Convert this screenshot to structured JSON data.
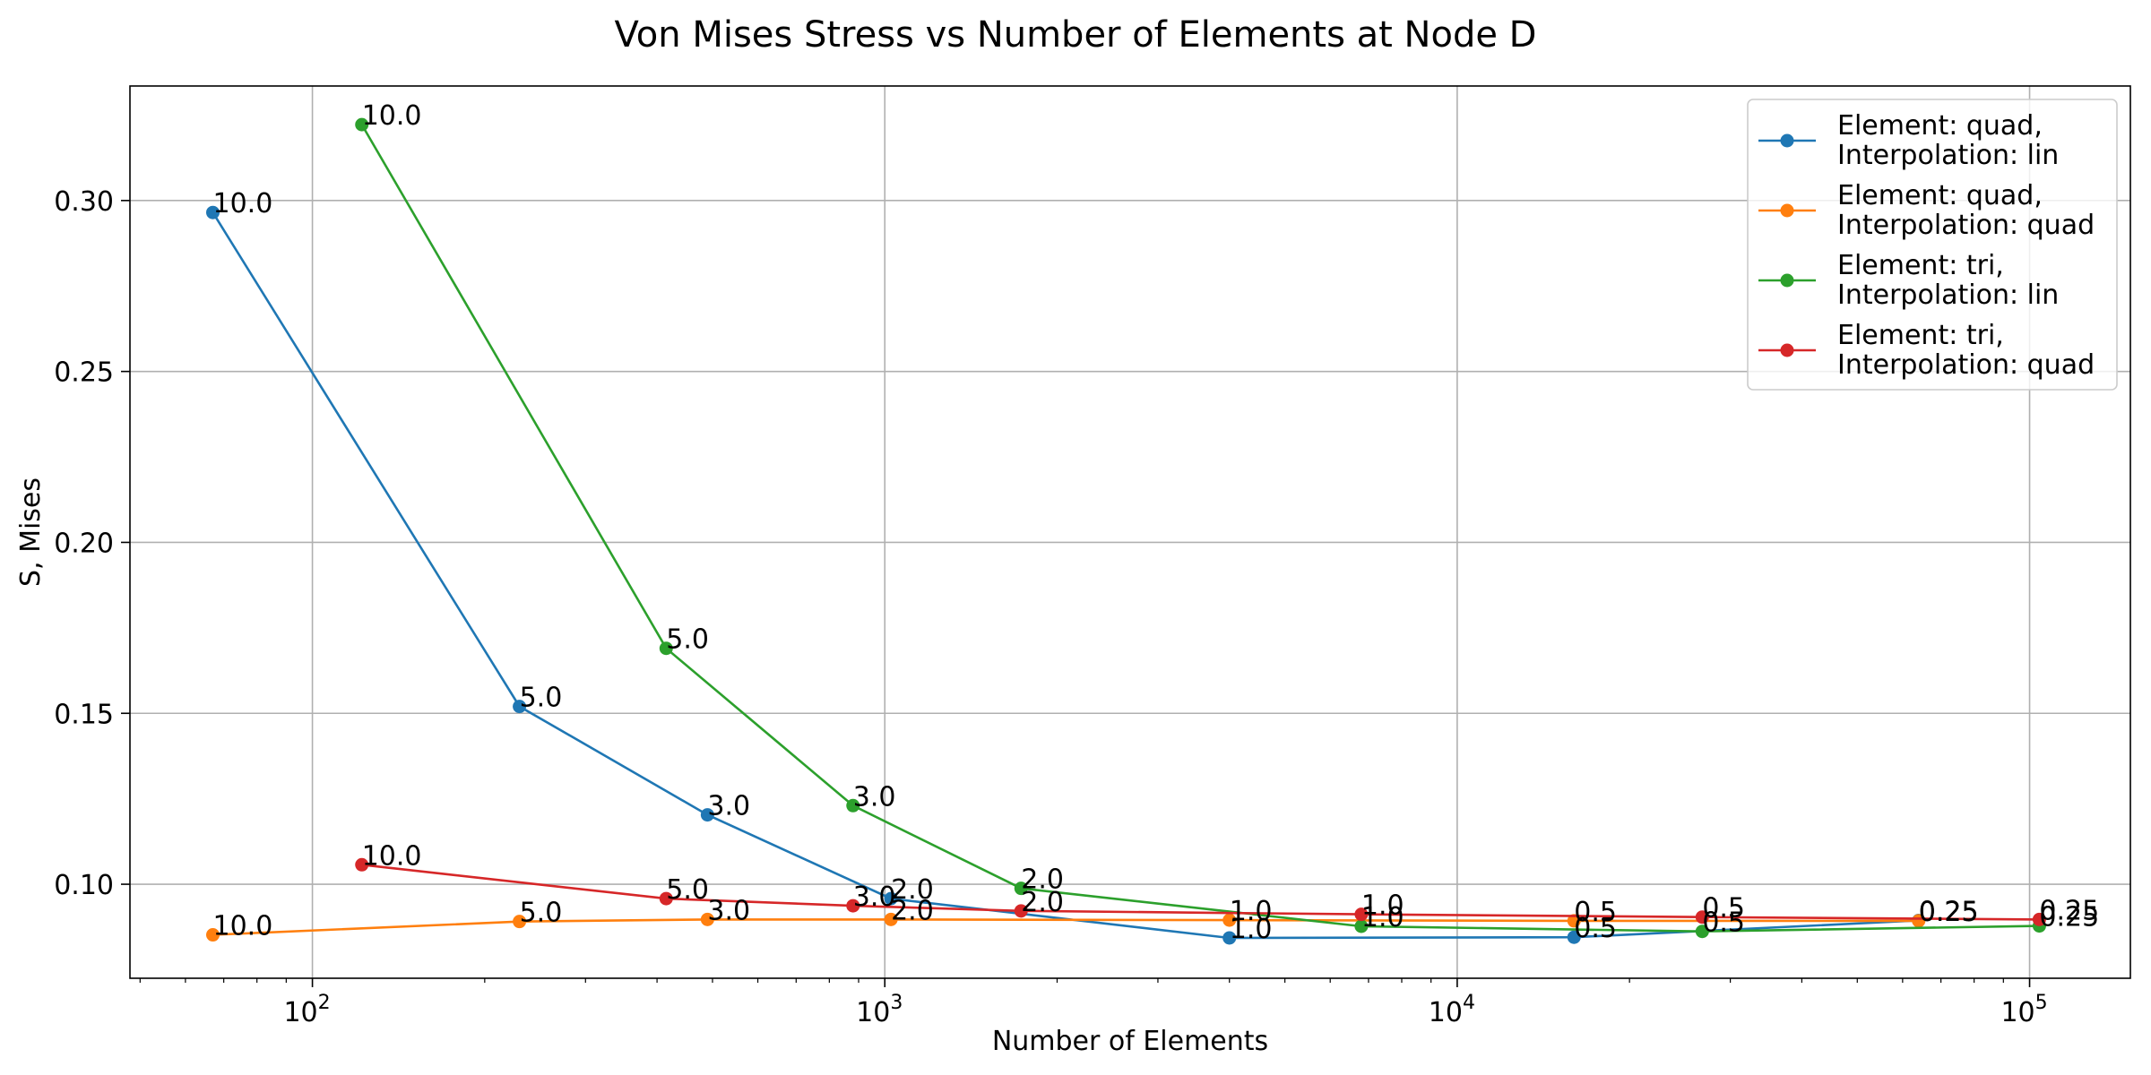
{
  "chart_data": {
    "type": "line",
    "title": "Von Mises Stress vs Number of Elements at Node D",
    "xlabel": "Number of Elements",
    "ylabel": "S, Mises",
    "xscale": "log",
    "xlim": [
      48,
      150000
    ],
    "ylim": [
      0.0725,
      0.3335
    ],
    "grid": true,
    "legend": "top-right",
    "x_ticks": [
      {
        "value": 100,
        "label": "10",
        "exp": "2"
      },
      {
        "value": 1000,
        "label": "10",
        "exp": "3"
      },
      {
        "value": 10000,
        "label": "10",
        "exp": "4"
      },
      {
        "value": 100000,
        "label": "10",
        "exp": "5"
      }
    ],
    "y_ticks": [
      {
        "value": 0.1,
        "label": "0.10"
      },
      {
        "value": 0.15,
        "label": "0.15"
      },
      {
        "value": 0.2,
        "label": "0.20"
      },
      {
        "value": 0.25,
        "label": "0.25"
      },
      {
        "value": 0.3,
        "label": "0.30"
      }
    ],
    "series": [
      {
        "name": "Element: quad,\nInterpolation: lin",
        "name_lines": [
          "Element: quad,",
          "Interpolation: lin"
        ],
        "color": "#1f77b4",
        "points": [
          {
            "x": 67,
            "y": 0.2965,
            "label": "10.0"
          },
          {
            "x": 230,
            "y": 0.152,
            "label": "5.0"
          },
          {
            "x": 490,
            "y": 0.1203,
            "label": "3.0"
          },
          {
            "x": 1025,
            "y": 0.0958,
            "label": "2.0"
          },
          {
            "x": 4000,
            "y": 0.0843,
            "label": "1.0"
          },
          {
            "x": 16000,
            "y": 0.0845,
            "label": "0.5"
          },
          {
            "x": 64000,
            "y": 0.0894,
            "label": "0.25"
          }
        ]
      },
      {
        "name": "Element: quad,\nInterpolation: quad",
        "name_lines": [
          "Element: quad,",
          "Interpolation: quad"
        ],
        "color": "#ff7f0e",
        "points": [
          {
            "x": 67,
            "y": 0.0852,
            "label": "10.0"
          },
          {
            "x": 230,
            "y": 0.0891,
            "label": "5.0"
          },
          {
            "x": 490,
            "y": 0.0897,
            "label": "3.0"
          },
          {
            "x": 1025,
            "y": 0.0897,
            "label": "2.0"
          },
          {
            "x": 4000,
            "y": 0.0895,
            "label": "1.0"
          },
          {
            "x": 16000,
            "y": 0.0893,
            "label": "0.5"
          },
          {
            "x": 64000,
            "y": 0.0893,
            "label": "0.25"
          }
        ]
      },
      {
        "name": "Element: tri,\nInterpolation: lin",
        "name_lines": [
          "Element: tri,",
          "Interpolation: lin"
        ],
        "color": "#2ca02c",
        "points": [
          {
            "x": 122,
            "y": 0.3222,
            "label": "10.0"
          },
          {
            "x": 415,
            "y": 0.169,
            "label": "5.0"
          },
          {
            "x": 880,
            "y": 0.123,
            "label": "3.0"
          },
          {
            "x": 1730,
            "y": 0.0988,
            "label": "2.0"
          },
          {
            "x": 6800,
            "y": 0.0877,
            "label": "1.0"
          },
          {
            "x": 26800,
            "y": 0.0862,
            "label": "0.5"
          },
          {
            "x": 104000,
            "y": 0.0878,
            "label": "0.25"
          }
        ]
      },
      {
        "name": "Element: tri,\nInterpolation: quad",
        "name_lines": [
          "Element: tri,",
          "Interpolation: quad"
        ],
        "color": "#d62728",
        "points": [
          {
            "x": 122,
            "y": 0.1057,
            "label": "10.0"
          },
          {
            "x": 415,
            "y": 0.0958,
            "label": "5.0"
          },
          {
            "x": 880,
            "y": 0.0937,
            "label": "3.0"
          },
          {
            "x": 1730,
            "y": 0.0922,
            "label": "2.0"
          },
          {
            "x": 6800,
            "y": 0.0912,
            "label": "1.0"
          },
          {
            "x": 26800,
            "y": 0.0904,
            "label": "0.5"
          },
          {
            "x": 104000,
            "y": 0.0897,
            "label": "0.25"
          }
        ]
      }
    ]
  }
}
